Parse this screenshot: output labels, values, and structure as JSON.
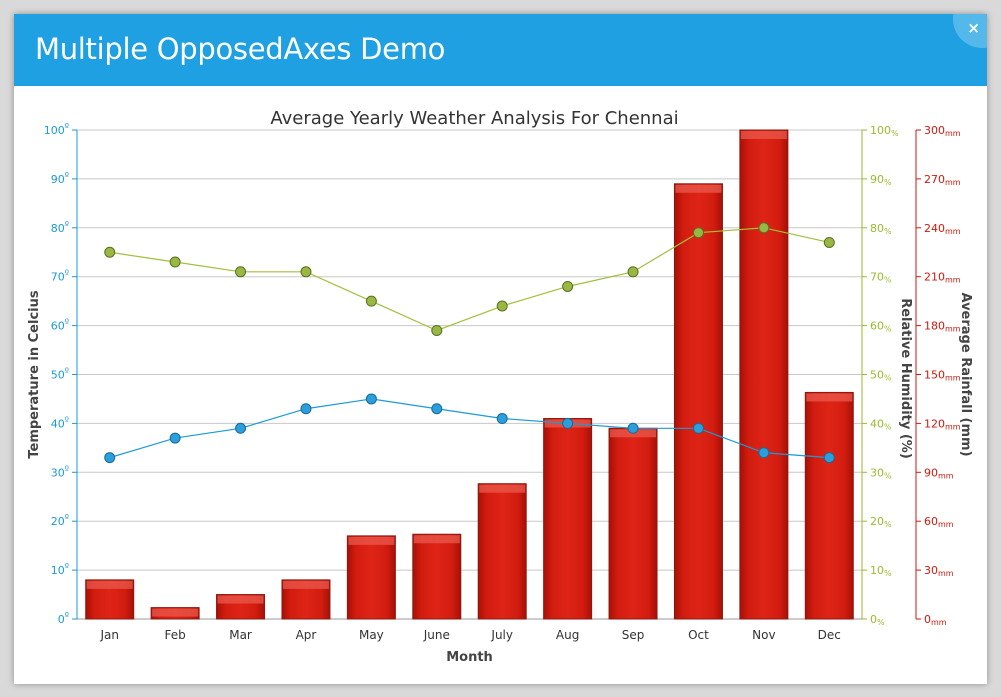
{
  "window": {
    "title": "Multiple OpposedAxes Demo",
    "close_label": "×"
  },
  "colors": {
    "titlebar": "#1fa0e2",
    "temperature": "#1b9ad6",
    "humidity": "#9aba2f",
    "rainfall": "#cc1a0e"
  },
  "chart_data": {
    "type": "bar",
    "title": "Average Yearly Weather Analysis For Chennai",
    "xlabel": "Month",
    "categories": [
      "Jan",
      "Feb",
      "Mar",
      "Apr",
      "May",
      "June",
      "July",
      "Aug",
      "Sep",
      "Oct",
      "Nov",
      "Dec"
    ],
    "axes": {
      "temperature": {
        "label": "Temperature in Celcius",
        "position": "left",
        "min": 0,
        "max": 100,
        "interval": 10,
        "suffix": "º",
        "color": "#1b9ad6"
      },
      "humidity": {
        "label": "Relative Humidity (%)",
        "position": "right",
        "min": 0,
        "max": 100,
        "interval": 10,
        "suffix": "%",
        "color": "#9aba2f"
      },
      "rainfall": {
        "label": "Average Rainfall (mm)",
        "position": "right",
        "min": 0,
        "max": 300,
        "interval": 30,
        "suffix": "mm",
        "color": "#cc1a0e"
      }
    },
    "grid": true,
    "series": [
      {
        "name": "Average Rainfall",
        "type": "bar",
        "axis": "rainfall",
        "values": [
          24,
          7,
          15,
          24,
          51,
          52,
          83,
          123,
          117,
          267,
          300,
          139
        ]
      },
      {
        "name": "Relative Humidity",
        "type": "line",
        "axis": "humidity",
        "values": [
          75,
          73,
          71,
          71,
          65,
          59,
          64,
          68,
          71,
          79,
          80,
          77
        ]
      },
      {
        "name": "Temperature",
        "type": "line",
        "axis": "temperature",
        "values": [
          33,
          37,
          39,
          43,
          45,
          43,
          41,
          40,
          39,
          39,
          34,
          33
        ]
      }
    ]
  }
}
